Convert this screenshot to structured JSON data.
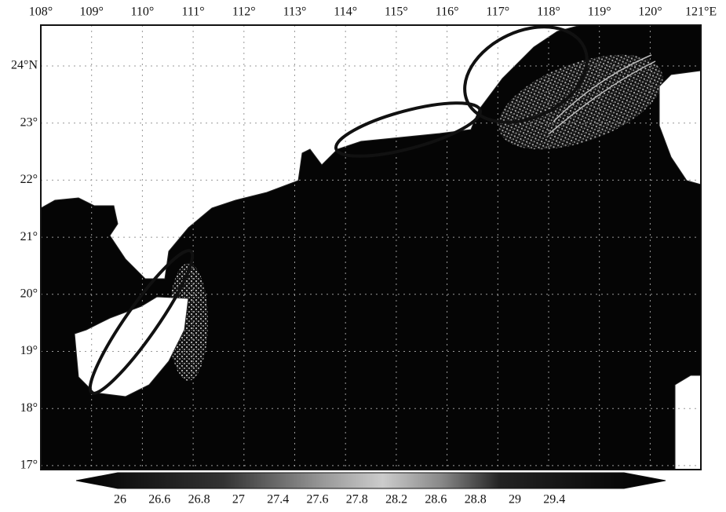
{
  "map": {
    "longitude_labels": [
      "108°",
      "109°",
      "110°",
      "111°",
      "112°",
      "113°",
      "114°",
      "115°",
      "116°",
      "117°",
      "118°",
      "119°",
      "120°",
      "121°E"
    ],
    "latitude_labels": [
      "24°N",
      "23°",
      "22°",
      "21°",
      "20°",
      "19°",
      "18°",
      "17°"
    ],
    "colorbar": {
      "labels": [
        26,
        26.6,
        26.8,
        27,
        27.4,
        27.6,
        27.8,
        28.2,
        28.6,
        28.8,
        29,
        29.4
      ]
    }
  }
}
